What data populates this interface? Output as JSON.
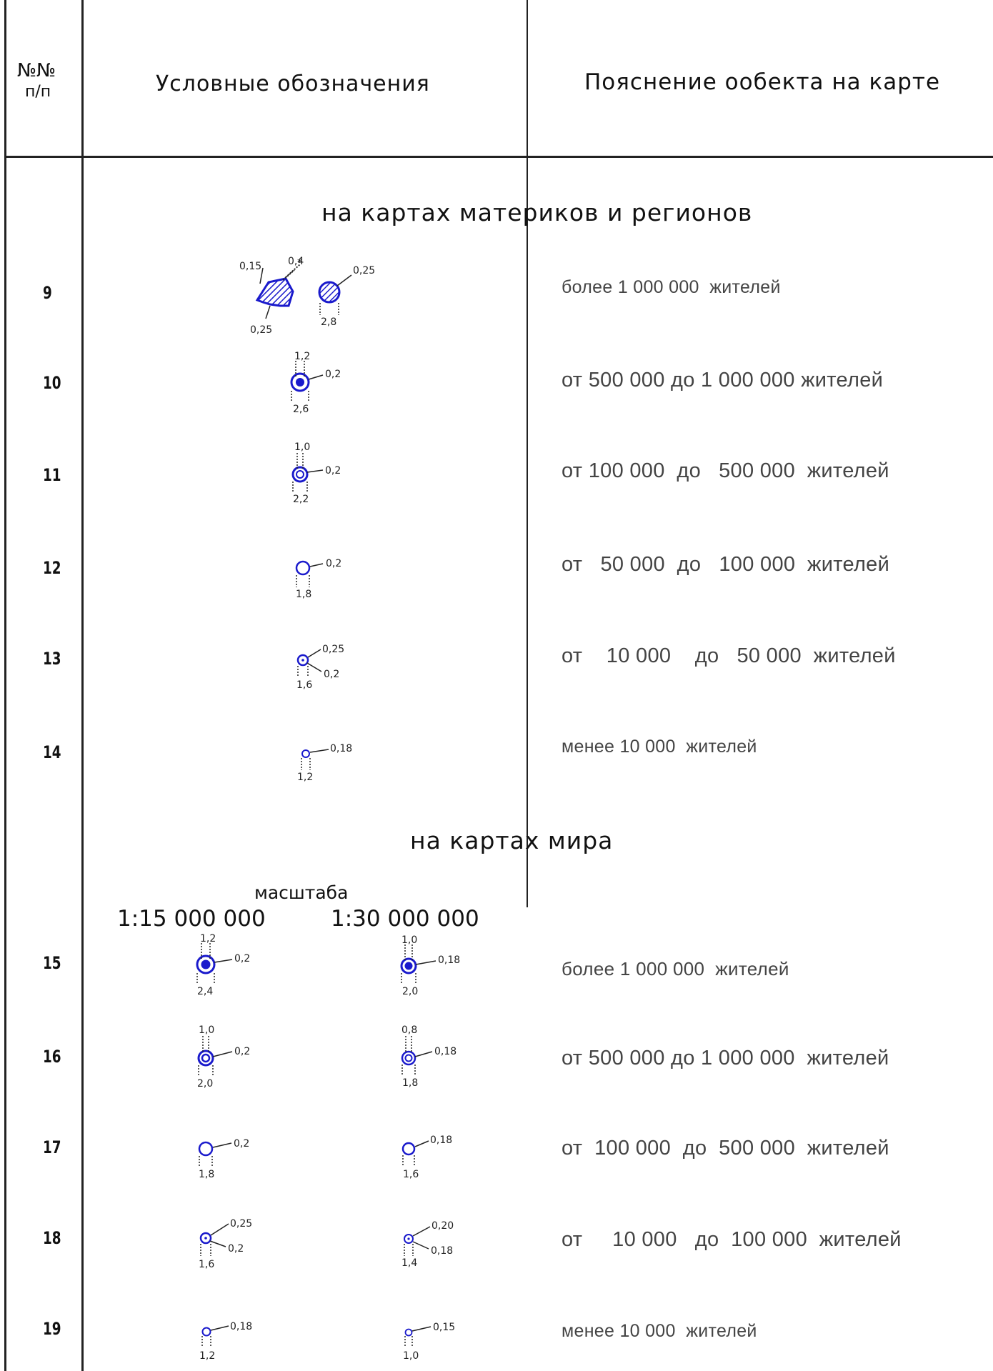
{
  "header": {
    "col_num": "№№ п/п",
    "col_num_line1": "№№",
    "col_num_line2": "п/п",
    "col_symbols": "Условные обозначения",
    "col_explanation": "Пояснение ообекта на карте"
  },
  "section_regions": {
    "title": "на картах материков и регионов",
    "rows": [
      {
        "num": "9",
        "desc": "более 1 000 000  жителей"
      },
      {
        "num": "10",
        "desc": "от 500 000 до 1 000 000 жителей"
      },
      {
        "num": "11",
        "desc": "от 100 000  до   500 000  жителей"
      },
      {
        "num": "12",
        "desc": "от   50 000  до   100 000  жителей"
      },
      {
        "num": "13",
        "desc": "от    10 000    до   50 000  жителей"
      },
      {
        "num": "14",
        "desc": "менее 10 000  жителей"
      }
    ],
    "dims": {
      "r9": {
        "a": "0,15",
        "b": "0,4",
        "c": "0,25",
        "d": "0,25",
        "e": "2,8"
      },
      "r10": {
        "inner": "1,2",
        "stroke": "0,2",
        "outer": "2,6"
      },
      "r11": {
        "inner": "1,0",
        "stroke": "0,2",
        "outer": "2,2"
      },
      "r12": {
        "stroke": "0,2",
        "outer": "1,8"
      },
      "r13": {
        "ring": "0,25",
        "stroke": "0,2",
        "outer": "1,6"
      },
      "r14": {
        "stroke": "0,18",
        "outer": "1,2"
      }
    }
  },
  "section_world": {
    "title": "на картах мира",
    "scale_label": "масштаба",
    "scale_1": "1:15 000 000",
    "scale_2": "1:30 000 000",
    "rows": [
      {
        "num": "15",
        "desc": "более 1 000 000  жителей"
      },
      {
        "num": "16",
        "desc": "от 500 000 до 1 000 000  жителей"
      },
      {
        "num": "17",
        "desc": "от  100 000  до  500 000  жителей"
      },
      {
        "num": "18",
        "desc": "от     10 000   до  100 000  жителей"
      },
      {
        "num": "19",
        "desc": "менее 10 000  жителей"
      }
    ],
    "dims": {
      "r15a": {
        "inner": "1,2",
        "stroke": "0,2",
        "outer": "2,4"
      },
      "r15b": {
        "inner": "1,0",
        "stroke": "0,18",
        "outer": "2,0"
      },
      "r16a": {
        "inner": "1,0",
        "stroke": "0,2",
        "outer": "2,0"
      },
      "r16b": {
        "inner": "0,8",
        "stroke": "0,18",
        "outer": "1,8"
      },
      "r17a": {
        "stroke": "0,2",
        "outer": "1,8"
      },
      "r17b": {
        "stroke": "0,18",
        "outer": "1,6"
      },
      "r18a": {
        "ring": "0,25",
        "stroke": "0,2",
        "outer": "1,6"
      },
      "r18b": {
        "ring": "0,20",
        "stroke": "0,18",
        "outer": "1,4"
      },
      "r19a": {
        "stroke": "0,18",
        "outer": "1,2"
      },
      "r19b": {
        "stroke": "0,15",
        "outer": "1,0"
      }
    }
  },
  "colors": {
    "symbol": "#1a1acc",
    "line": "#222222",
    "text": "#444444"
  }
}
